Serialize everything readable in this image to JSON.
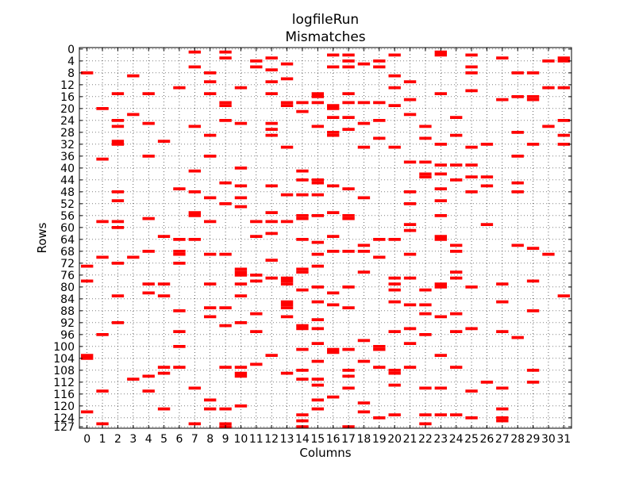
{
  "chart_data": {
    "type": "heatmap",
    "title": [
      "logfileRun",
      "Mismatches"
    ],
    "xlabel": "Columns",
    "ylabel": "Rows",
    "xlim": [
      0,
      31
    ],
    "ylim": [
      0,
      127
    ],
    "y_inverted": true,
    "grid": "dotted",
    "x_ticks": [
      0,
      1,
      2,
      3,
      4,
      5,
      6,
      7,
      8,
      9,
      10,
      11,
      12,
      13,
      14,
      15,
      16,
      17,
      18,
      19,
      20,
      21,
      22,
      23,
      24,
      25,
      26,
      27,
      28,
      29,
      30,
      31
    ],
    "y_ticks": [
      0,
      4,
      8,
      12,
      16,
      20,
      24,
      28,
      32,
      36,
      40,
      44,
      48,
      52,
      56,
      60,
      64,
      68,
      72,
      76,
      80,
      84,
      88,
      92,
      96,
      100,
      104,
      108,
      112,
      116,
      120,
      124,
      127
    ],
    "mark_color": "#ff0000",
    "mismatches": [
      [
        0,
        8
      ],
      [
        0,
        73
      ],
      [
        0,
        78
      ],
      [
        0,
        103
      ],
      [
        0,
        104
      ],
      [
        0,
        122
      ],
      [
        1,
        20
      ],
      [
        1,
        37
      ],
      [
        1,
        58
      ],
      [
        1,
        70
      ],
      [
        1,
        96
      ],
      [
        1,
        115
      ],
      [
        1,
        126
      ],
      [
        2,
        15
      ],
      [
        2,
        24
      ],
      [
        2,
        26
      ],
      [
        2,
        31
      ],
      [
        2,
        32
      ],
      [
        2,
        48
      ],
      [
        2,
        51
      ],
      [
        2,
        58
      ],
      [
        2,
        60
      ],
      [
        2,
        72
      ],
      [
        2,
        83
      ],
      [
        2,
        92
      ],
      [
        3,
        9
      ],
      [
        3,
        22
      ],
      [
        3,
        70
      ],
      [
        3,
        111
      ],
      [
        4,
        15
      ],
      [
        4,
        25
      ],
      [
        4,
        36
      ],
      [
        4,
        57
      ],
      [
        4,
        68
      ],
      [
        4,
        79
      ],
      [
        4,
        82
      ],
      [
        4,
        110
      ],
      [
        4,
        115
      ],
      [
        5,
        31
      ],
      [
        5,
        63
      ],
      [
        5,
        79
      ],
      [
        5,
        83
      ],
      [
        5,
        107
      ],
      [
        5,
        109
      ],
      [
        5,
        121
      ],
      [
        6,
        13
      ],
      [
        6,
        47
      ],
      [
        6,
        64
      ],
      [
        6,
        68
      ],
      [
        6,
        69
      ],
      [
        6,
        72
      ],
      [
        6,
        88
      ],
      [
        6,
        95
      ],
      [
        6,
        100
      ],
      [
        6,
        107
      ],
      [
        7,
        1
      ],
      [
        7,
        6
      ],
      [
        7,
        26
      ],
      [
        7,
        41
      ],
      [
        7,
        48
      ],
      [
        7,
        55
      ],
      [
        7,
        56
      ],
      [
        7,
        64
      ],
      [
        7,
        114
      ],
      [
        7,
        126
      ],
      [
        8,
        8
      ],
      [
        8,
        11
      ],
      [
        8,
        15
      ],
      [
        8,
        29
      ],
      [
        8,
        36
      ],
      [
        8,
        50
      ],
      [
        8,
        58
      ],
      [
        8,
        69
      ],
      [
        8,
        79
      ],
      [
        8,
        87
      ],
      [
        8,
        90
      ],
      [
        8,
        118
      ],
      [
        8,
        121
      ],
      [
        9,
        1
      ],
      [
        9,
        3
      ],
      [
        9,
        18
      ],
      [
        9,
        19
      ],
      [
        9,
        24
      ],
      [
        9,
        45
      ],
      [
        9,
        52
      ],
      [
        9,
        69
      ],
      [
        9,
        87
      ],
      [
        9,
        93
      ],
      [
        9,
        107
      ],
      [
        9,
        121
      ],
      [
        9,
        126
      ],
      [
        9,
        127
      ],
      [
        10,
        13
      ],
      [
        10,
        25
      ],
      [
        10,
        40
      ],
      [
        10,
        46
      ],
      [
        10,
        50
      ],
      [
        10,
        53
      ],
      [
        10,
        74
      ],
      [
        10,
        75
      ],
      [
        10,
        76
      ],
      [
        10,
        79
      ],
      [
        10,
        83
      ],
      [
        10,
        92
      ],
      [
        10,
        107
      ],
      [
        10,
        109
      ],
      [
        10,
        110
      ],
      [
        10,
        120
      ],
      [
        11,
        4
      ],
      [
        11,
        6
      ],
      [
        11,
        58
      ],
      [
        11,
        63
      ],
      [
        11,
        76
      ],
      [
        11,
        78
      ],
      [
        11,
        89
      ],
      [
        11,
        95
      ],
      [
        11,
        106
      ],
      [
        12,
        3
      ],
      [
        12,
        7
      ],
      [
        12,
        11
      ],
      [
        12,
        15
      ],
      [
        12,
        25
      ],
      [
        12,
        27
      ],
      [
        12,
        29
      ],
      [
        12,
        46
      ],
      [
        12,
        55
      ],
      [
        12,
        58
      ],
      [
        12,
        62
      ],
      [
        12,
        71
      ],
      [
        12,
        77
      ],
      [
        12,
        103
      ],
      [
        13,
        5
      ],
      [
        13,
        10
      ],
      [
        13,
        18
      ],
      [
        13,
        19
      ],
      [
        13,
        33
      ],
      [
        13,
        49
      ],
      [
        13,
        58
      ],
      [
        13,
        77
      ],
      [
        13,
        78
      ],
      [
        13,
        79
      ],
      [
        13,
        85
      ],
      [
        13,
        86
      ],
      [
        13,
        87
      ],
      [
        13,
        90
      ],
      [
        13,
        109
      ],
      [
        14,
        18
      ],
      [
        14,
        21
      ],
      [
        14,
        41
      ],
      [
        14,
        44
      ],
      [
        14,
        49
      ],
      [
        14,
        56
      ],
      [
        14,
        57
      ],
      [
        14,
        64
      ],
      [
        14,
        74
      ],
      [
        14,
        75
      ],
      [
        14,
        81
      ],
      [
        14,
        93
      ],
      [
        14,
        94
      ],
      [
        14,
        101
      ],
      [
        14,
        108
      ],
      [
        14,
        111
      ],
      [
        14,
        123
      ],
      [
        14,
        125
      ],
      [
        14,
        127
      ],
      [
        15,
        15
      ],
      [
        15,
        16
      ],
      [
        15,
        18
      ],
      [
        15,
        26
      ],
      [
        15,
        44
      ],
      [
        15,
        45
      ],
      [
        15,
        49
      ],
      [
        15,
        56
      ],
      [
        15,
        65
      ],
      [
        15,
        69
      ],
      [
        15,
        73
      ],
      [
        15,
        80
      ],
      [
        15,
        85
      ],
      [
        15,
        91
      ],
      [
        15,
        94
      ],
      [
        15,
        99
      ],
      [
        15,
        105
      ],
      [
        15,
        111
      ],
      [
        15,
        113
      ],
      [
        15,
        118
      ],
      [
        15,
        121
      ],
      [
        16,
        2
      ],
      [
        16,
        6
      ],
      [
        16,
        19
      ],
      [
        16,
        20
      ],
      [
        16,
        23
      ],
      [
        16,
        28
      ],
      [
        16,
        29
      ],
      [
        16,
        46
      ],
      [
        16,
        55
      ],
      [
        16,
        63
      ],
      [
        16,
        68
      ],
      [
        16,
        82
      ],
      [
        16,
        86
      ],
      [
        16,
        101
      ],
      [
        16,
        102
      ],
      [
        16,
        117
      ],
      [
        17,
        2
      ],
      [
        17,
        4
      ],
      [
        17,
        6
      ],
      [
        17,
        15
      ],
      [
        17,
        18
      ],
      [
        17,
        23
      ],
      [
        17,
        27
      ],
      [
        17,
        47
      ],
      [
        17,
        56
      ],
      [
        17,
        57
      ],
      [
        17,
        68
      ],
      [
        17,
        80
      ],
      [
        17,
        87
      ],
      [
        17,
        101
      ],
      [
        17,
        108
      ],
      [
        17,
        110
      ],
      [
        17,
        114
      ],
      [
        17,
        127
      ],
      [
        18,
        5
      ],
      [
        18,
        18
      ],
      [
        18,
        25
      ],
      [
        18,
        33
      ],
      [
        18,
        50
      ],
      [
        18,
        66
      ],
      [
        18,
        68
      ],
      [
        18,
        75
      ],
      [
        18,
        98
      ],
      [
        18,
        105
      ],
      [
        18,
        119
      ],
      [
        18,
        122
      ],
      [
        19,
        4
      ],
      [
        19,
        6
      ],
      [
        19,
        18
      ],
      [
        19,
        24
      ],
      [
        19,
        30
      ],
      [
        19,
        64
      ],
      [
        19,
        70
      ],
      [
        19,
        100
      ],
      [
        19,
        101
      ],
      [
        19,
        107
      ],
      [
        19,
        124
      ],
      [
        20,
        2
      ],
      [
        20,
        9
      ],
      [
        20,
        13
      ],
      [
        20,
        19
      ],
      [
        20,
        33
      ],
      [
        20,
        64
      ],
      [
        20,
        77
      ],
      [
        20,
        79
      ],
      [
        20,
        81
      ],
      [
        20,
        85
      ],
      [
        20,
        95
      ],
      [
        20,
        108
      ],
      [
        20,
        109
      ],
      [
        20,
        113
      ],
      [
        20,
        123
      ],
      [
        21,
        11
      ],
      [
        21,
        17
      ],
      [
        21,
        22
      ],
      [
        21,
        38
      ],
      [
        21,
        48
      ],
      [
        21,
        52
      ],
      [
        21,
        59
      ],
      [
        21,
        61
      ],
      [
        21,
        69
      ],
      [
        21,
        77
      ],
      [
        21,
        86
      ],
      [
        21,
        94
      ],
      [
        21,
        99
      ],
      [
        21,
        107
      ],
      [
        22,
        26
      ],
      [
        22,
        30
      ],
      [
        22,
        38
      ],
      [
        22,
        42
      ],
      [
        22,
        43
      ],
      [
        22,
        81
      ],
      [
        22,
        86
      ],
      [
        22,
        89
      ],
      [
        22,
        96
      ],
      [
        22,
        114
      ],
      [
        22,
        123
      ],
      [
        22,
        126
      ],
      [
        23,
        1
      ],
      [
        23,
        2
      ],
      [
        23,
        15
      ],
      [
        23,
        32
      ],
      [
        23,
        39
      ],
      [
        23,
        42
      ],
      [
        23,
        47
      ],
      [
        23,
        51
      ],
      [
        23,
        56
      ],
      [
        23,
        63
      ],
      [
        23,
        64
      ],
      [
        23,
        79
      ],
      [
        23,
        80
      ],
      [
        23,
        90
      ],
      [
        23,
        103
      ],
      [
        23,
        114
      ],
      [
        23,
        123
      ],
      [
        24,
        23
      ],
      [
        24,
        29
      ],
      [
        24,
        39
      ],
      [
        24,
        44
      ],
      [
        24,
        66
      ],
      [
        24,
        68
      ],
      [
        24,
        75
      ],
      [
        24,
        77
      ],
      [
        24,
        89
      ],
      [
        24,
        95
      ],
      [
        24,
        107
      ],
      [
        24,
        123
      ],
      [
        25,
        2
      ],
      [
        25,
        6
      ],
      [
        25,
        8
      ],
      [
        25,
        14
      ],
      [
        25,
        33
      ],
      [
        25,
        39
      ],
      [
        25,
        43
      ],
      [
        25,
        48
      ],
      [
        25,
        80
      ],
      [
        25,
        94
      ],
      [
        25,
        115
      ],
      [
        25,
        124
      ],
      [
        26,
        32
      ],
      [
        26,
        43
      ],
      [
        26,
        46
      ],
      [
        26,
        59
      ],
      [
        26,
        112
      ],
      [
        27,
        3
      ],
      [
        27,
        17
      ],
      [
        27,
        79
      ],
      [
        27,
        85
      ],
      [
        27,
        95
      ],
      [
        27,
        114
      ],
      [
        27,
        121
      ],
      [
        27,
        124
      ],
      [
        27,
        125
      ],
      [
        28,
        8
      ],
      [
        28,
        16
      ],
      [
        28,
        28
      ],
      [
        28,
        36
      ],
      [
        28,
        45
      ],
      [
        28,
        48
      ],
      [
        28,
        66
      ],
      [
        28,
        97
      ],
      [
        29,
        8
      ],
      [
        29,
        16
      ],
      [
        29,
        17
      ],
      [
        29,
        32
      ],
      [
        29,
        67
      ],
      [
        29,
        78
      ],
      [
        29,
        88
      ],
      [
        29,
        108
      ],
      [
        29,
        112
      ],
      [
        30,
        4
      ],
      [
        30,
        13
      ],
      [
        30,
        26
      ],
      [
        30,
        69
      ],
      [
        31,
        3
      ],
      [
        31,
        4
      ],
      [
        31,
        13
      ],
      [
        31,
        24
      ],
      [
        31,
        29
      ],
      [
        31,
        32
      ],
      [
        31,
        83
      ]
    ]
  }
}
